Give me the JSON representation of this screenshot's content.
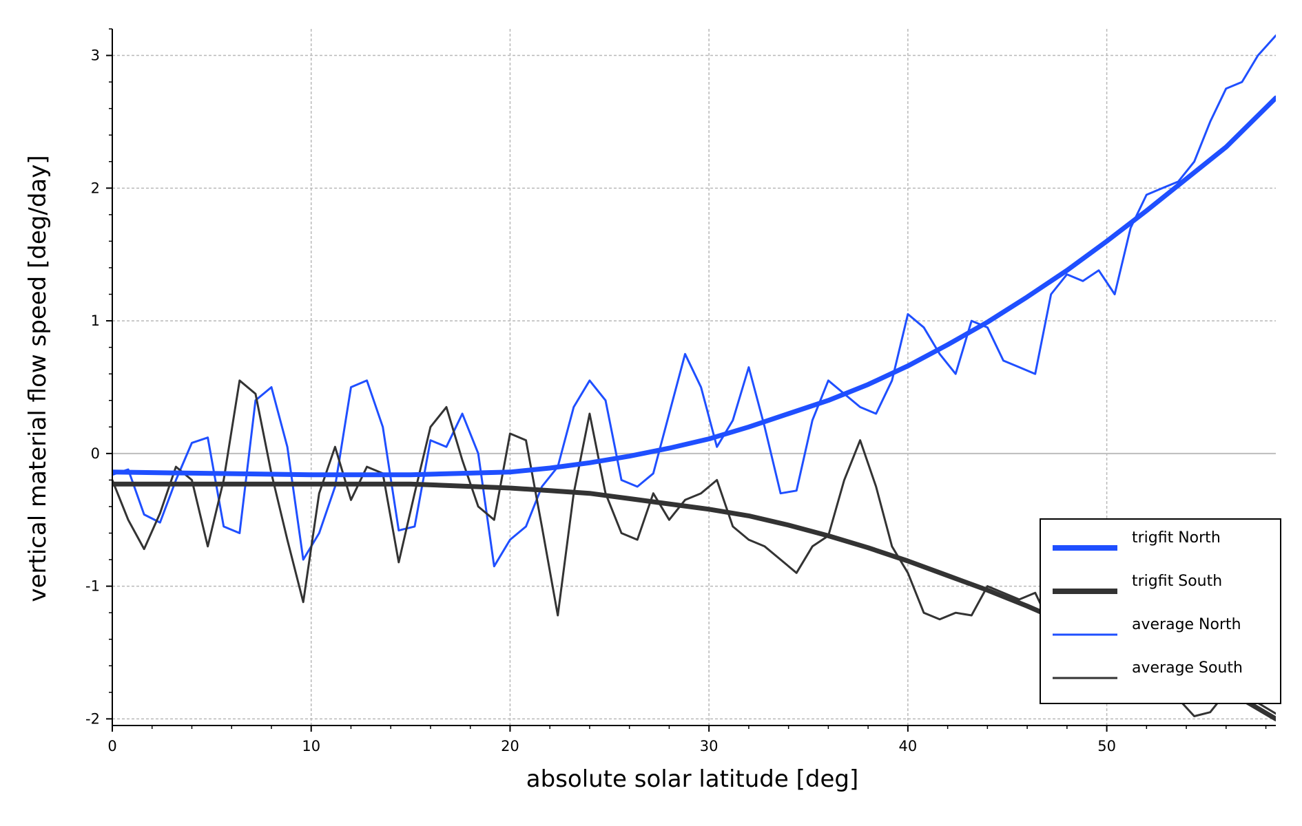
{
  "chart_data": {
    "type": "line",
    "xlabel": "absolute solar latitude [deg]",
    "ylabel": "vertical material flow speed [deg/day]",
    "xlim": [
      0,
      58.5
    ],
    "ylim": [
      -2.05,
      3.2
    ],
    "xticks": [
      0,
      10,
      20,
      30,
      40,
      50
    ],
    "yticks": [
      -2,
      -1,
      0,
      1,
      2,
      3
    ],
    "grid": true,
    "legend_position": "bottom-right",
    "series": [
      {
        "name": "trigfit North",
        "color": "#1f4fff",
        "style": "thick",
        "x": [
          0,
          5,
          10,
          15,
          20,
          22,
          24,
          26,
          28,
          30,
          32,
          34,
          36,
          38,
          40,
          42,
          44,
          46,
          48,
          50,
          52,
          54,
          56,
          58.5
        ],
        "y": [
          -0.14,
          -0.15,
          -0.16,
          -0.16,
          -0.14,
          -0.11,
          -0.07,
          -0.02,
          0.04,
          0.11,
          0.2,
          0.3,
          0.4,
          0.52,
          0.66,
          0.82,
          0.99,
          1.18,
          1.38,
          1.6,
          1.83,
          2.07,
          2.31,
          2.68
        ]
      },
      {
        "name": "trigfit South",
        "color": "#333333",
        "style": "thick",
        "x": [
          0,
          5,
          10,
          15,
          20,
          22,
          24,
          26,
          28,
          30,
          32,
          34,
          36,
          38,
          40,
          42,
          44,
          46,
          48,
          50,
          52,
          54,
          56,
          58.5
        ],
        "y": [
          -0.23,
          -0.23,
          -0.23,
          -0.23,
          -0.26,
          -0.28,
          -0.3,
          -0.34,
          -0.38,
          -0.42,
          -0.47,
          -0.54,
          -0.62,
          -0.71,
          -0.81,
          -0.92,
          -1.03,
          -1.15,
          -1.28,
          -1.41,
          -1.54,
          -1.66,
          -1.78,
          -2.0
        ]
      },
      {
        "name": "average North",
        "color": "#1f4fff",
        "style": "thin",
        "x": [
          0,
          0.8,
          1.6,
          2.4,
          3.2,
          4.0,
          4.8,
          5.6,
          6.4,
          7.2,
          8.0,
          8.8,
          9.6,
          10.4,
          11.2,
          12.0,
          12.8,
          13.6,
          14.4,
          15.2,
          16.0,
          16.8,
          17.6,
          18.4,
          19.2,
          20.0,
          20.8,
          21.6,
          22.4,
          23.2,
          24.0,
          24.8,
          25.6,
          26.4,
          27.2,
          28.0,
          28.8,
          29.6,
          30.4,
          31.2,
          32.0,
          32.8,
          33.6,
          34.4,
          35.2,
          36.0,
          36.8,
          37.6,
          38.4,
          39.2,
          40.0,
          40.8,
          41.6,
          42.4,
          43.2,
          44.0,
          44.8,
          45.6,
          46.4,
          47.2,
          48.0,
          48.8,
          49.6,
          50.4,
          51.2,
          52.0,
          52.8,
          53.6,
          54.4,
          55.2,
          56.0,
          56.8,
          57.6,
          58.5
        ],
        "y": [
          -0.16,
          -0.12,
          -0.46,
          -0.52,
          -0.2,
          0.08,
          0.12,
          -0.55,
          -0.6,
          0.4,
          0.5,
          0.05,
          -0.8,
          -0.6,
          -0.25,
          0.5,
          0.55,
          0.2,
          -0.58,
          -0.55,
          0.1,
          0.05,
          0.3,
          0.0,
          -0.85,
          -0.65,
          -0.55,
          -0.25,
          -0.1,
          0.35,
          0.55,
          0.4,
          -0.2,
          -0.25,
          -0.15,
          0.3,
          0.75,
          0.5,
          0.05,
          0.25,
          0.65,
          0.2,
          -0.3,
          -0.28,
          0.25,
          0.55,
          0.45,
          0.35,
          0.3,
          0.55,
          1.05,
          0.95,
          0.75,
          0.6,
          1.0,
          0.95,
          0.7,
          0.65,
          0.6,
          1.2,
          1.35,
          1.3,
          1.38,
          1.2,
          1.7,
          1.95,
          2.0,
          2.05,
          2.2,
          2.5,
          2.75,
          2.8,
          3.0,
          3.15
        ]
      },
      {
        "name": "average South",
        "color": "#333333",
        "style": "thin",
        "x": [
          0,
          0.8,
          1.6,
          2.4,
          3.2,
          4.0,
          4.8,
          5.6,
          6.4,
          7.2,
          8.0,
          8.8,
          9.6,
          10.4,
          11.2,
          12.0,
          12.8,
          13.6,
          14.4,
          15.2,
          16.0,
          16.8,
          17.6,
          18.4,
          19.2,
          20.0,
          20.8,
          21.6,
          22.4,
          23.2,
          24.0,
          24.8,
          25.6,
          26.4,
          27.2,
          28.0,
          28.8,
          29.6,
          30.4,
          31.2,
          32.0,
          32.8,
          33.6,
          34.4,
          35.2,
          36.0,
          36.8,
          37.6,
          38.4,
          39.2,
          40.0,
          40.8,
          41.6,
          42.4,
          43.2,
          44.0,
          44.8,
          45.6,
          46.4,
          47.2,
          48.0,
          48.8,
          49.6,
          50.4,
          51.2,
          52.0,
          52.8,
          53.6,
          54.4,
          55.2,
          56.0,
          56.8,
          57.6,
          58.5
        ],
        "y": [
          -0.2,
          -0.5,
          -0.72,
          -0.45,
          -0.1,
          -0.2,
          -0.7,
          -0.2,
          0.55,
          0.45,
          -0.15,
          -0.65,
          -1.12,
          -0.3,
          0.05,
          -0.35,
          -0.1,
          -0.15,
          -0.82,
          -0.3,
          0.2,
          0.35,
          -0.05,
          -0.4,
          -0.5,
          0.15,
          0.1,
          -0.55,
          -1.22,
          -0.3,
          0.3,
          -0.3,
          -0.6,
          -0.65,
          -0.3,
          -0.5,
          -0.35,
          -0.3,
          -0.2,
          -0.55,
          -0.65,
          -0.7,
          -0.8,
          -0.9,
          -0.7,
          -0.62,
          -0.2,
          0.1,
          -0.25,
          -0.7,
          -0.9,
          -1.2,
          -1.25,
          -1.2,
          -1.22,
          -1.0,
          -1.05,
          -1.1,
          -1.05,
          -1.3,
          -1.45,
          -1.5,
          -1.55,
          -1.6,
          -1.65,
          -1.7,
          -1.75,
          -1.85,
          -1.98,
          -1.95,
          -1.8,
          -1.85,
          -1.88,
          -1.96
        ]
      }
    ]
  }
}
